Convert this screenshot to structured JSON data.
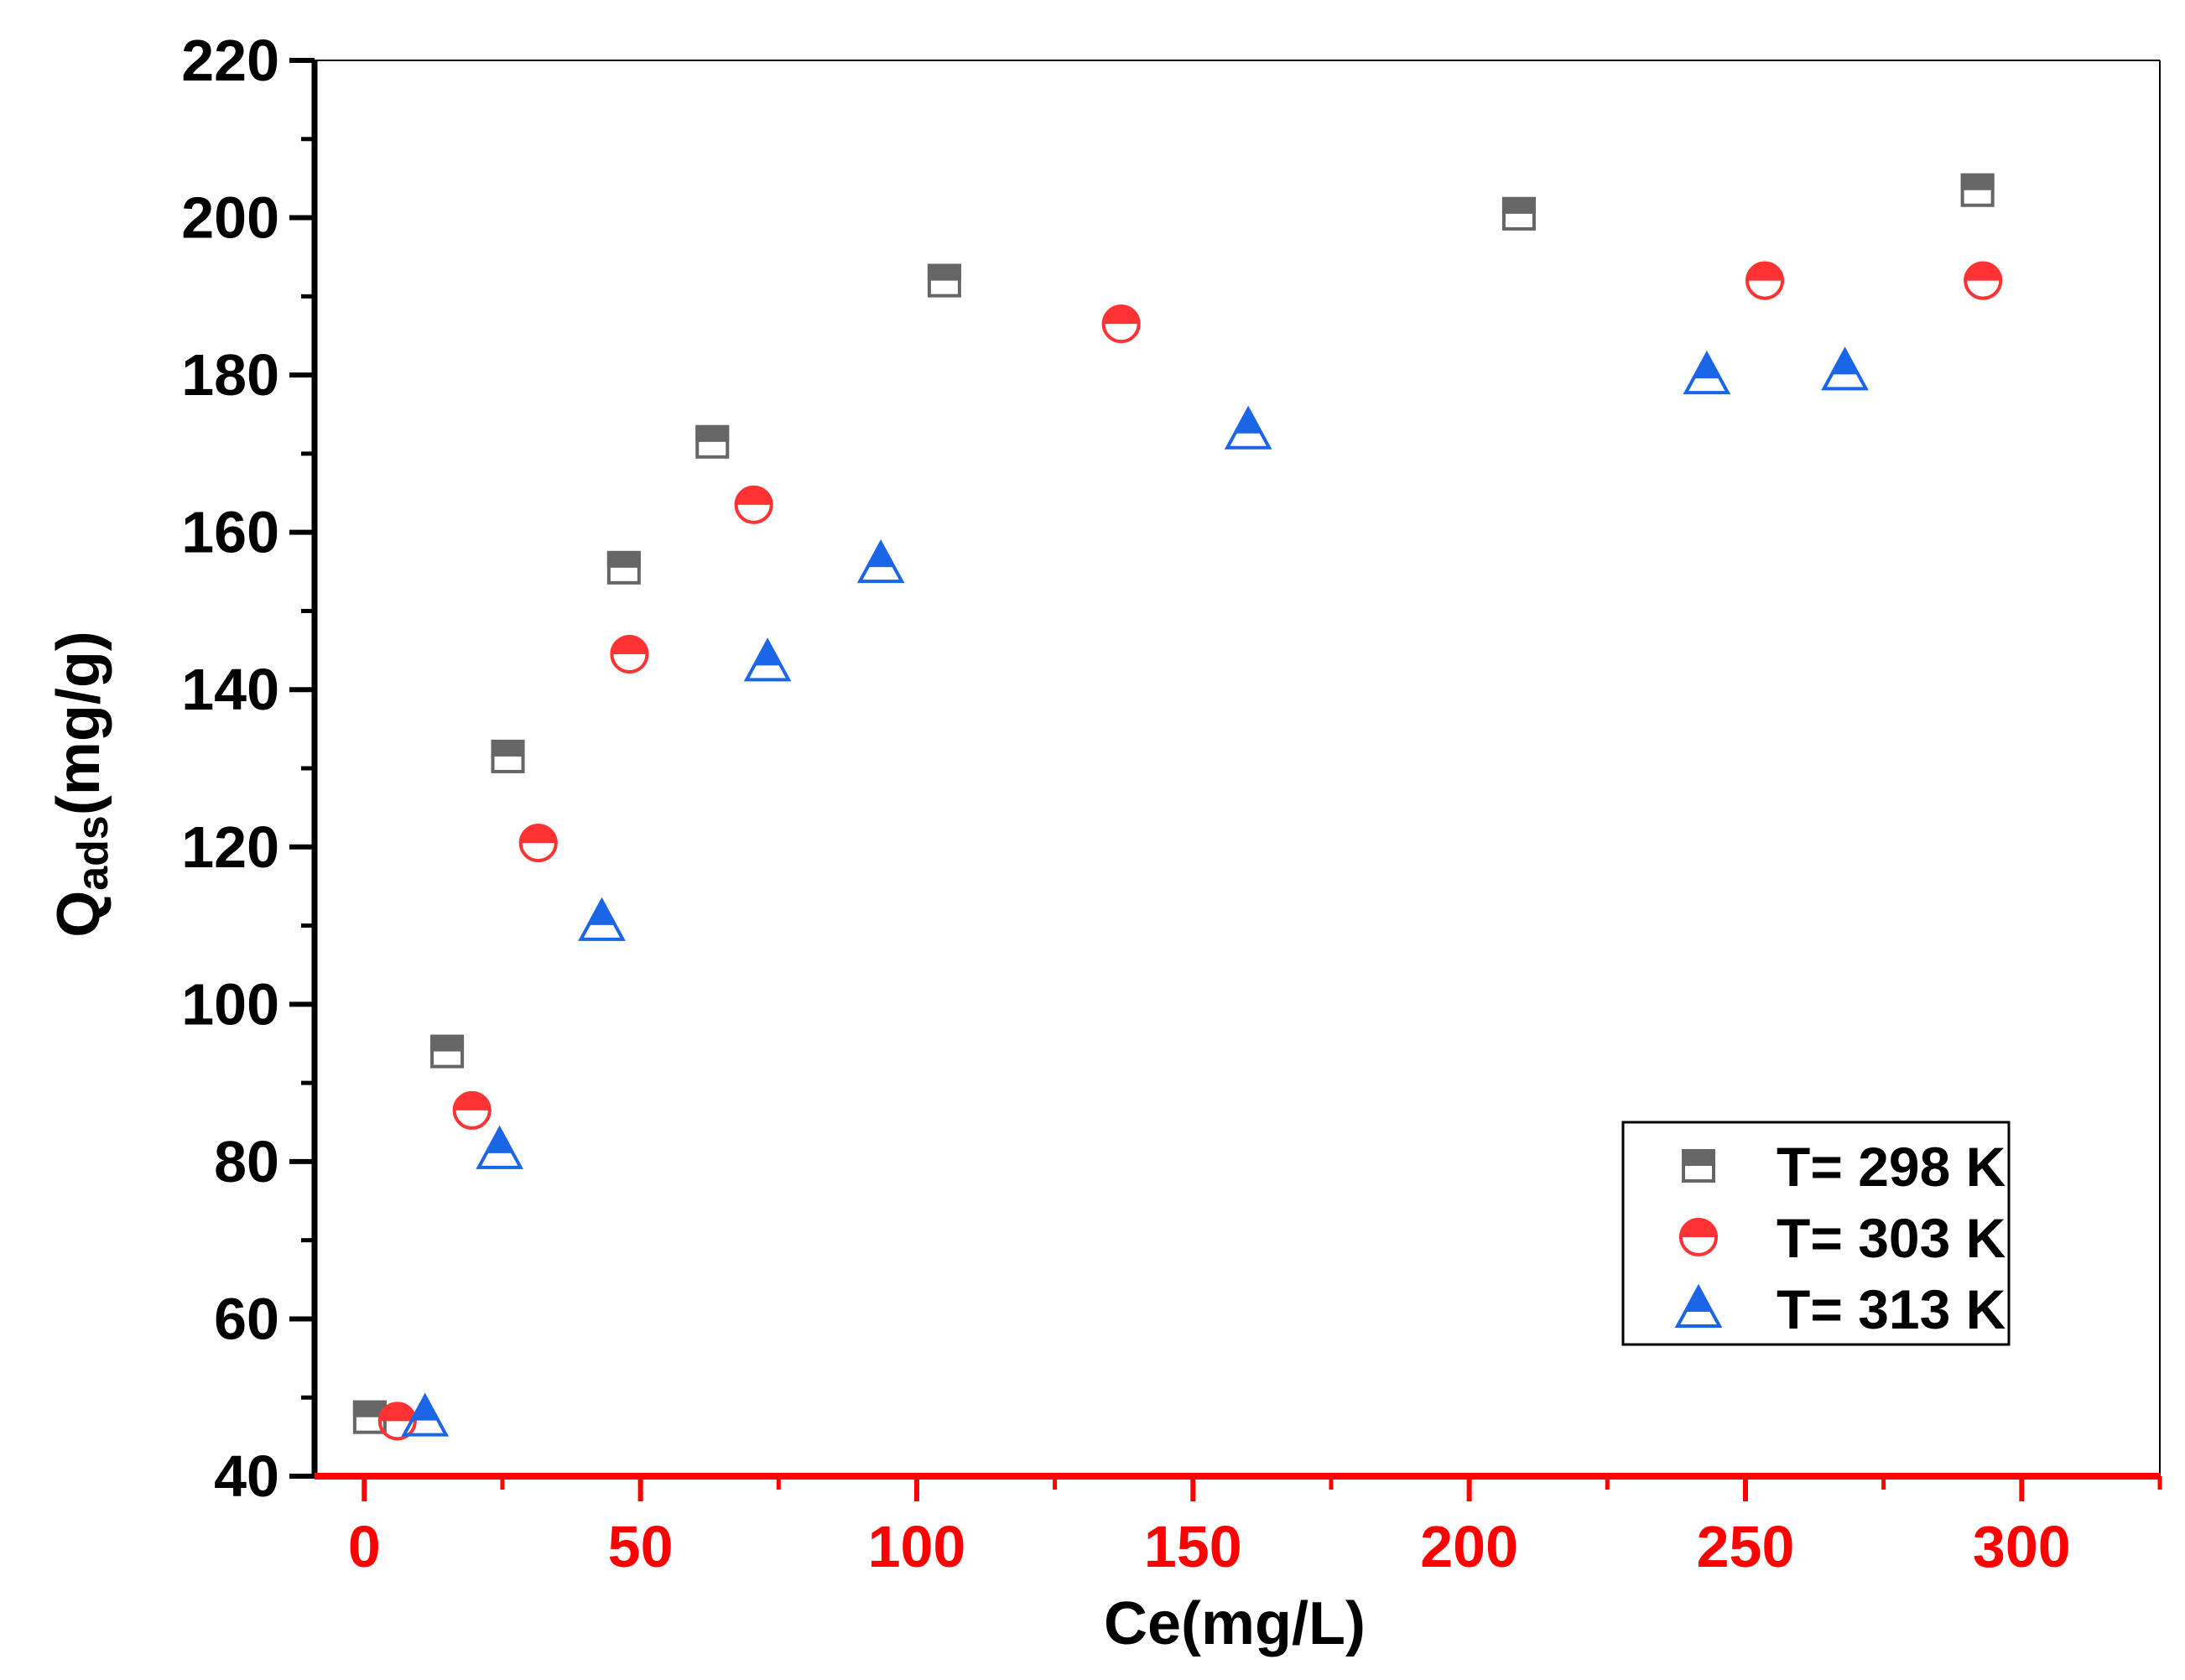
{
  "chart_data": {
    "type": "scatter",
    "title": "",
    "xlabel": "Ce(mg/L)",
    "ylabel_main": "Q",
    "ylabel_sub": "ads",
    "ylabel_tail": "(mg/g)",
    "xlim": [
      -9,
      325
    ],
    "ylim": [
      40,
      220
    ],
    "x_ticks": [
      0,
      50,
      100,
      150,
      200,
      250,
      300
    ],
    "x_tick_labels": [
      "0",
      "50",
      "100",
      "150",
      "200",
      "250",
      "300"
    ],
    "y_ticks": [
      40,
      60,
      80,
      100,
      120,
      140,
      160,
      180,
      200,
      220
    ],
    "y_tick_labels": [
      "40",
      "60",
      "80",
      "100",
      "120",
      "140",
      "160",
      "180",
      "200",
      "220"
    ],
    "legend_position": "bottom-right",
    "colors": {
      "x_axis": "#ff0000",
      "y_axis": "#000000",
      "s298": "#666666",
      "s303": "#ff3333",
      "s313": "#1a66e6"
    },
    "series": [
      {
        "name": "T= 298 K",
        "marker": "square-half",
        "color": "#666666",
        "points": [
          [
            1,
            47.5
          ],
          [
            15,
            94
          ],
          [
            26,
            131.5
          ],
          [
            47,
            155.5
          ],
          [
            63,
            171.5
          ],
          [
            105,
            192
          ],
          [
            209,
            200.5
          ],
          [
            292,
            203.5
          ]
        ]
      },
      {
        "name": "T= 303 K",
        "marker": "circle-half",
        "color": "#ff3333",
        "points": [
          [
            6,
            47
          ],
          [
            19.5,
            86.5
          ],
          [
            31.5,
            120.5
          ],
          [
            48,
            144.5
          ],
          [
            70.5,
            163.5
          ],
          [
            137,
            186.5
          ],
          [
            253.5,
            192
          ],
          [
            293,
            192
          ]
        ]
      },
      {
        "name": "T= 313 K",
        "marker": "triangle-half",
        "color": "#1a66e6",
        "points": [
          [
            11,
            47.5
          ],
          [
            24.5,
            81.5
          ],
          [
            43,
            110.5
          ],
          [
            73,
            143.5
          ],
          [
            93.5,
            156
          ],
          [
            160,
            173
          ],
          [
            243,
            180
          ],
          [
            268,
            180.5
          ]
        ]
      }
    ]
  }
}
